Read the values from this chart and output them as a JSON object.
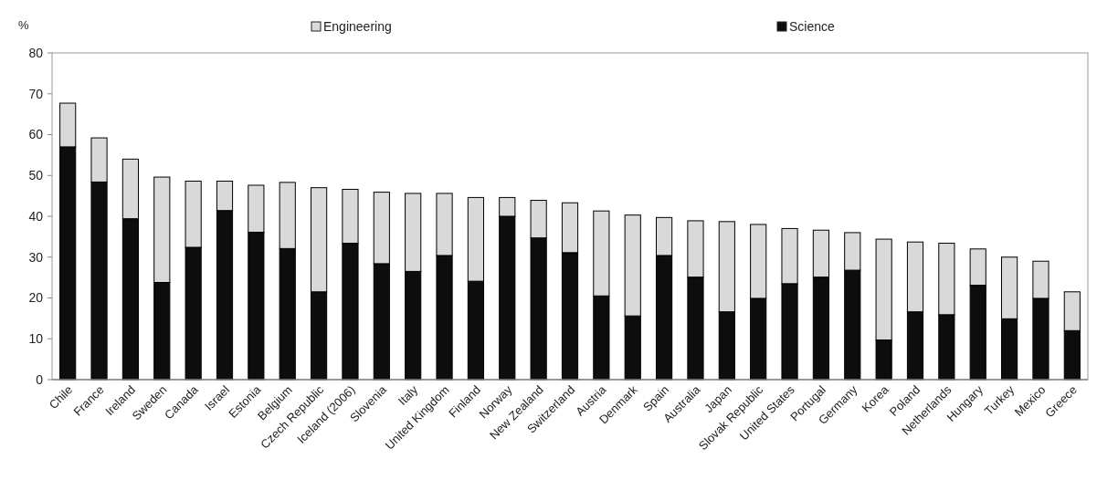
{
  "chart_data": {
    "type": "bar",
    "stacked": true,
    "ylabel": "%",
    "categories": [
      "Chile",
      "France",
      "Ireland",
      "Sweden",
      "Canada",
      "Israel",
      "Estonia",
      "Belgium",
      "Czech Republic",
      "Iceland (2006)",
      "Slovenia",
      "Italy",
      "United Kingdom",
      "Finland",
      "Norway",
      "New Zealand",
      "Switzerland",
      "Austria",
      "Denmark",
      "Spain",
      "Australia",
      "Japan",
      "Slovak Republic",
      "United States",
      "Portugal",
      "Germany",
      "Korea",
      "Poland",
      "Netherlands",
      "Hungary",
      "Turkey",
      "Mexico",
      "Greece"
    ],
    "series": [
      {
        "name": "Science",
        "color": "#0d0d0d",
        "values": [
          57,
          48.4,
          39.4,
          23.8,
          32.4,
          41.4,
          36.1,
          32.1,
          21.5,
          33.4,
          28.4,
          26.5,
          30.4,
          24.1,
          40,
          34.7,
          31.1,
          20.5,
          15.6,
          30.4,
          25.1,
          16.6,
          19.9,
          23.5,
          25.1,
          26.8,
          9.7,
          16.6,
          15.9,
          23.1,
          14.9,
          19.9,
          12
        ]
      },
      {
        "name": "Engineering",
        "color": "#d9d9d9",
        "values": [
          10.7,
          10.8,
          14.6,
          25.8,
          16.2,
          7.2,
          11.5,
          16.2,
          25.5,
          13.2,
          17.5,
          19.1,
          15.2,
          20.5,
          4.6,
          9.2,
          12.2,
          20.8,
          24.7,
          9.3,
          13.8,
          22.1,
          18.1,
          13.5,
          11.5,
          9.2,
          24.7,
          17.1,
          17.5,
          8.9,
          15.1,
          9.1,
          9.5
        ]
      }
    ],
    "ylim": [
      0,
      80
    ],
    "yticks": [
      0,
      10,
      20,
      30,
      40,
      50,
      60,
      70,
      80
    ],
    "grid": false,
    "legend": "top"
  }
}
